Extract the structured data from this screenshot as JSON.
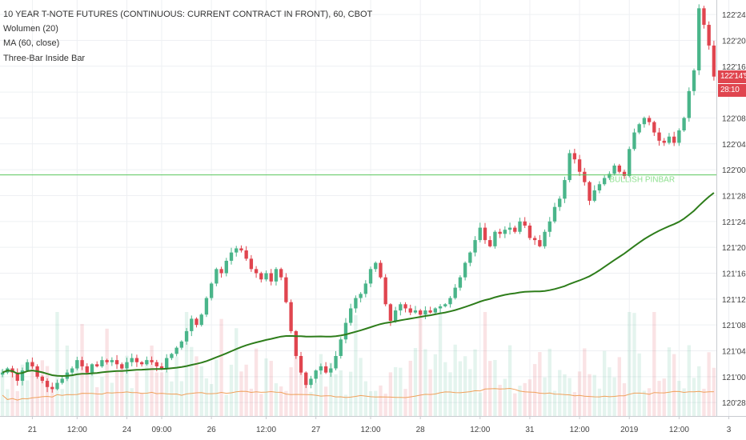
{
  "legend": {
    "title": "10 YEAR T-NOTE FUTURES (CONTINUOUS: CURRENT CONTRACT IN FRONT), 60, CBOT",
    "volume": "Wolumen (20)",
    "ma": "MA (60, close)",
    "inside_bar": "Three-Bar Inside Bar"
  },
  "price_labels": {
    "last_price": "122'14'5",
    "countdown": "28:10"
  },
  "colors": {
    "up": "#4ab58a",
    "down": "#e0454f",
    "ma": "#2e7d1b",
    "volume_ma": "#f0a05a",
    "signal": "#59c75d",
    "grid": "#eef0f3",
    "axis_text": "#444444"
  },
  "annotation": {
    "text": "BULLISH PINBAR"
  },
  "chart_data": {
    "type": "candlestick",
    "y_axis": {
      "unit": "price in 32nds",
      "ticks": [
        "122'24'0",
        "122'20'0",
        "122'16'0",
        "122'12'0",
        "122'08'0",
        "122'04'0",
        "122'00'0",
        "121'28'0",
        "121'24'0",
        "121'20'0",
        "121'16'0",
        "121'12'0",
        "121'08'0",
        "121'04'0",
        "121'00'0",
        "120'28'0"
      ],
      "tick_values": [
        122.75,
        122.625,
        122.5,
        122.375,
        122.25,
        122.125,
        122.0,
        121.875,
        121.75,
        121.625,
        121.5,
        121.375,
        121.25,
        121.125,
        121.0,
        120.875
      ],
      "range": [
        120.81,
        122.82
      ]
    },
    "x_axis": {
      "ticks": [
        "21",
        "12:00",
        "24",
        "09:00",
        "26",
        "12:00",
        "27",
        "12:00",
        "28",
        "12:00",
        "31",
        "12:00",
        "2019",
        "12:00",
        "3"
      ],
      "tick_bar_index": [
        6,
        15,
        25,
        32,
        42,
        53,
        63,
        74,
        84,
        96,
        106,
        116,
        126,
        136,
        146
      ]
    },
    "signal_level": 121.975,
    "key_ohlc": [
      {
        "label": "start",
        "close": 120.97
      },
      {
        "label": "Dec 26 high",
        "close": 121.625
      },
      {
        "label": "Dec 27 low",
        "close": 120.93
      },
      {
        "label": "Dec 31 high",
        "close": 121.79
      },
      {
        "label": "Jan 3 high",
        "close": 122.78
      },
      {
        "label": "last",
        "close": 122.45
      }
    ],
    "closes": [
      121.02,
      121.04,
      121.02,
      120.98,
      121.03,
      121.07,
      121.05,
      121.0,
      120.98,
      120.95,
      120.94,
      120.97,
      120.99,
      121.02,
      121.04,
      121.08,
      121.05,
      121.02,
      121.06,
      121.05,
      121.08,
      121.07,
      121.08,
      121.06,
      121.04,
      121.07,
      121.09,
      121.07,
      121.06,
      121.08,
      121.07,
      121.05,
      121.04,
      121.09,
      121.11,
      121.14,
      121.17,
      121.22,
      121.28,
      121.25,
      121.3,
      121.38,
      121.45,
      121.52,
      121.5,
      121.56,
      121.6,
      121.62,
      121.61,
      121.57,
      121.52,
      121.5,
      121.47,
      121.5,
      121.46,
      121.52,
      121.48,
      121.36,
      121.22,
      121.1,
      121.02,
      120.96,
      120.99,
      121.03,
      121.05,
      121.02,
      121.04,
      121.1,
      121.18,
      121.26,
      121.33,
      121.38,
      121.4,
      121.45,
      121.52,
      121.55,
      121.48,
      121.35,
      121.27,
      121.32,
      121.35,
      121.33,
      121.31,
      121.32,
      121.3,
      121.32,
      121.31,
      121.33,
      121.34,
      121.35,
      121.38,
      121.43,
      121.48,
      121.55,
      121.6,
      121.66,
      121.72,
      121.66,
      121.63,
      121.7,
      121.69,
      121.71,
      121.72,
      121.7,
      121.75,
      121.73,
      121.67,
      121.66,
      121.63,
      121.7,
      121.75,
      121.82,
      121.86,
      121.95,
      122.08,
      122.05,
      121.99,
      121.94,
      121.85,
      121.9,
      121.93,
      121.96,
      121.98,
      122.02,
      121.99,
      121.97,
      122.1,
      122.18,
      122.22,
      122.25,
      122.23,
      122.18,
      122.14,
      122.13,
      122.16,
      122.13,
      122.19,
      122.25,
      122.38,
      122.48,
      122.78,
      122.7,
      122.6,
      122.45
    ],
    "volume_unit": "relative",
    "volume_range": [
      0,
      1
    ]
  }
}
